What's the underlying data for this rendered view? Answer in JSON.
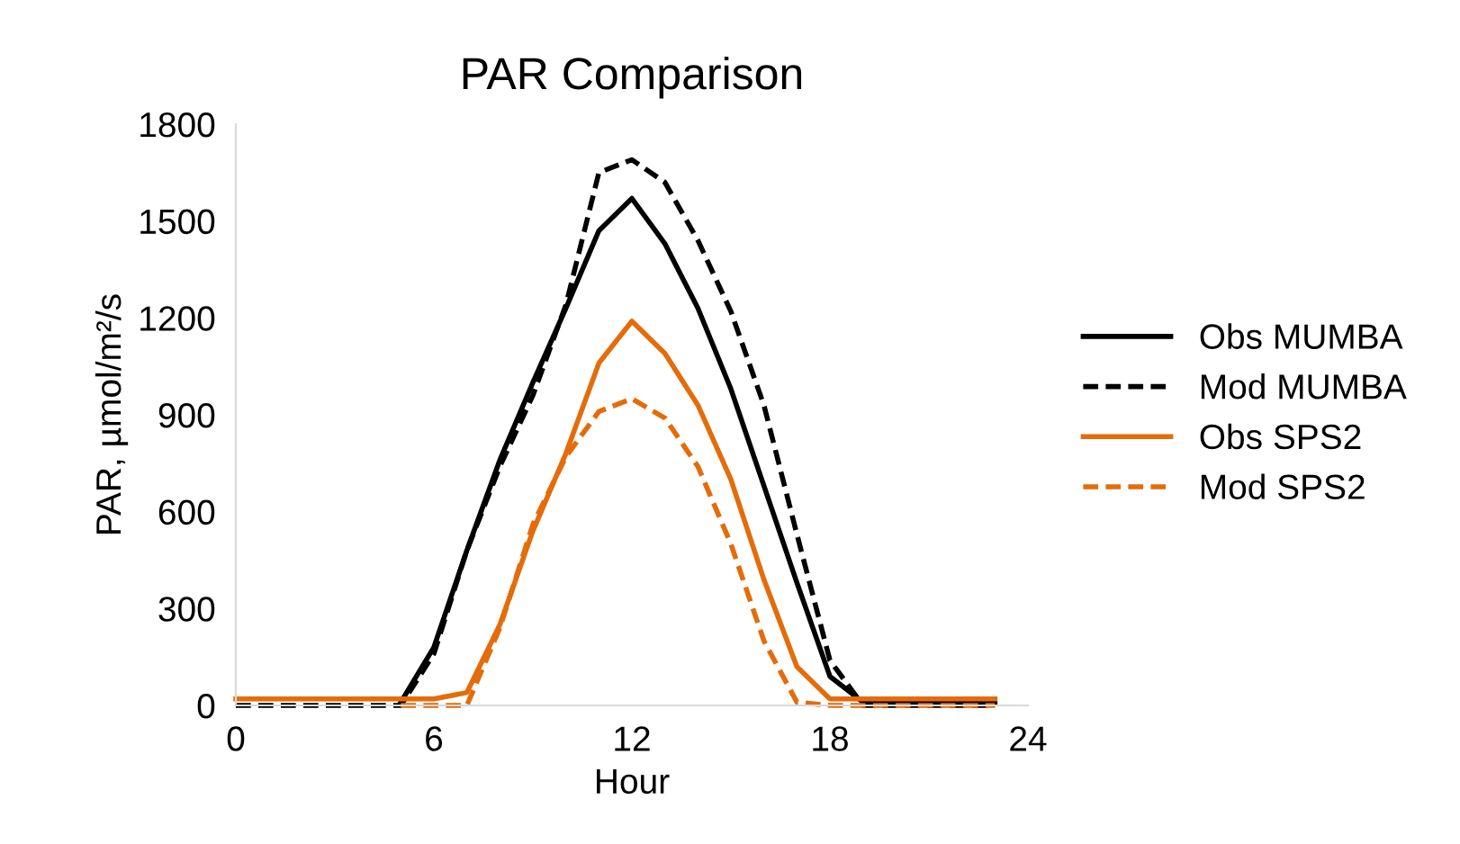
{
  "chart_data": {
    "type": "line",
    "title": "PAR Comparison",
    "xlabel": "Hour",
    "ylabel": "PAR, µmol/m²/s",
    "x": [
      0,
      1,
      2,
      3,
      4,
      5,
      6,
      7,
      8,
      9,
      10,
      11,
      12,
      13,
      14,
      15,
      16,
      17,
      18,
      19,
      20,
      21,
      22,
      23
    ],
    "series": [
      {
        "name": "Obs MUMBA",
        "color": "#000000",
        "line_style": "solid",
        "values": [
          null,
          null,
          null,
          null,
          null,
          10,
          180,
          480,
          760,
          1000,
          1230,
          1470,
          1570,
          1430,
          1230,
          980,
          680,
          380,
          90,
          10,
          10,
          10,
          10,
          10
        ]
      },
      {
        "name": "Mod MUMBA",
        "color": "#000000",
        "line_style": "dashed",
        "values": [
          0,
          0,
          0,
          0,
          0,
          0,
          160,
          480,
          740,
          960,
          1240,
          1650,
          1690,
          1620,
          1440,
          1220,
          930,
          530,
          140,
          0,
          0,
          0,
          0,
          0
        ]
      },
      {
        "name": "Obs SPS2",
        "color": "#e46c0a",
        "line_style": "solid",
        "values": [
          20,
          20,
          20,
          20,
          20,
          20,
          20,
          40,
          250,
          540,
          780,
          1060,
          1190,
          1090,
          930,
          700,
          390,
          120,
          20,
          20,
          20,
          20,
          20,
          20
        ]
      },
      {
        "name": "Mod SPS2",
        "color": "#e46c0a",
        "line_style": "dashed",
        "values": [
          null,
          null,
          null,
          null,
          null,
          0,
          0,
          0,
          240,
          560,
          770,
          910,
          950,
          890,
          740,
          500,
          200,
          10,
          0,
          0,
          0,
          0,
          0,
          0
        ]
      }
    ],
    "xlim": [
      0,
      24
    ],
    "xticks": [
      0,
      6,
      12,
      18,
      24
    ],
    "ylim": [
      0,
      1800
    ],
    "yticks": [
      0,
      300,
      600,
      900,
      1200,
      1500,
      1800
    ],
    "grid": false,
    "legend": "right",
    "marker": "none"
  }
}
